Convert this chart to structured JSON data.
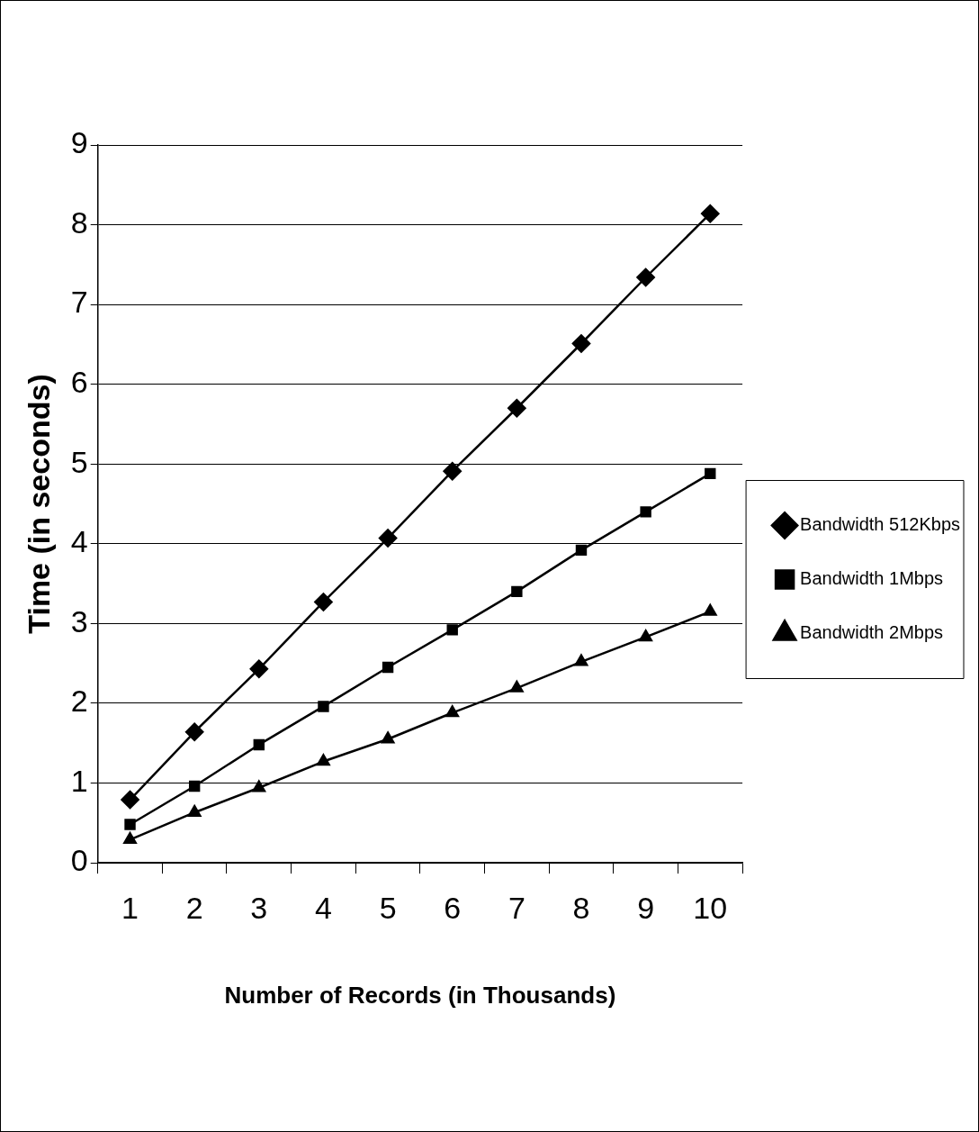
{
  "chart_data": {
    "type": "line",
    "xlabel": "Number of Records (in Thousands)",
    "ylabel": "Time (in seconds)",
    "categories": [
      "1",
      "2",
      "3",
      "4",
      "5",
      "6",
      "7",
      "8",
      "9",
      "10"
    ],
    "series": [
      {
        "name": "Bandwidth 512Kbps",
        "color": "#000000",
        "marker": "diamond",
        "values": [
          0.79,
          1.64,
          2.43,
          3.27,
          4.07,
          4.91,
          5.7,
          6.51,
          7.34,
          8.14
        ]
      },
      {
        "name": "Bandwidth 1Mbps",
        "color": "#000000",
        "marker": "square",
        "values": [
          0.48,
          0.96,
          1.48,
          1.96,
          2.45,
          2.92,
          3.4,
          3.92,
          4.4,
          4.88
        ]
      },
      {
        "name": "Bandwidth 2Mbps",
        "color": "#000000",
        "marker": "triangle",
        "values": [
          0.29,
          0.63,
          0.94,
          1.27,
          1.55,
          1.88,
          2.19,
          2.52,
          2.83,
          3.15
        ]
      }
    ],
    "ylim": [
      0,
      9
    ],
    "yticks": [
      0,
      1,
      2,
      3,
      4,
      5,
      6,
      7,
      8,
      9
    ],
    "grid": "y",
    "legend": "right",
    "line_style": "solid"
  }
}
